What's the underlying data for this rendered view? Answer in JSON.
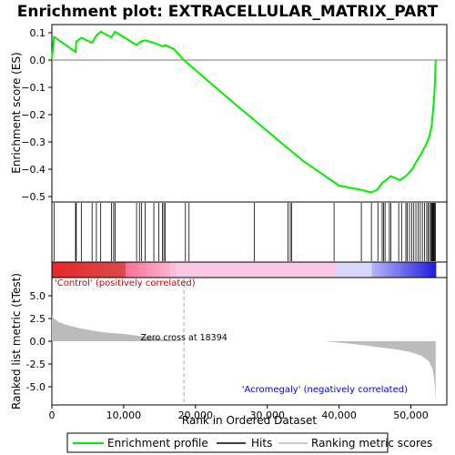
{
  "chart_data": {
    "type": "line",
    "title": "Enrichment plot: EXTRACELLULAR_MATRIX_PART",
    "top_panel": {
      "ylabel": "Enrichment score (ES)",
      "ylim": [
        -0.52,
        0.13
      ],
      "yticks": [
        0.1,
        0.0,
        -0.1,
        -0.2,
        -0.3,
        -0.4,
        -0.5
      ],
      "ytick_labels": [
        "0.1",
        "0.0",
        "−0.1",
        "−0.2",
        "−0.3",
        "−0.4",
        "−0.5"
      ],
      "series": [
        {
          "name": "Enrichment profile",
          "color": "#00ee00",
          "x": [
            0,
            300,
            3300,
            3400,
            4100,
            5600,
            6200,
            6800,
            8300,
            8800,
            11800,
            12400,
            13000,
            14200,
            15500,
            15800,
            17000,
            18394,
            25000,
            30000,
            35000,
            40000,
            43000,
            44500,
            45300,
            46000,
            46500,
            47200,
            48500,
            49500,
            50300,
            50800,
            51400,
            52000,
            52500,
            52900,
            53100,
            53250,
            53350,
            53450
          ],
          "y": [
            0.0,
            0.085,
            0.03,
            0.068,
            0.082,
            0.063,
            0.09,
            0.104,
            0.083,
            0.104,
            0.055,
            0.068,
            0.072,
            0.063,
            0.05,
            0.055,
            0.04,
            0.0,
            -0.15,
            -0.26,
            -0.37,
            -0.46,
            -0.475,
            -0.485,
            -0.475,
            -0.45,
            -0.44,
            -0.425,
            -0.44,
            -0.42,
            -0.395,
            -0.37,
            -0.345,
            -0.315,
            -0.285,
            -0.24,
            -0.18,
            -0.13,
            -0.075,
            0.0
          ]
        }
      ]
    },
    "hits_panel": {
      "name": "Hits",
      "positions": [
        300,
        3300,
        3400,
        4100,
        5600,
        6200,
        6800,
        8300,
        8600,
        8800,
        11800,
        12200,
        12500,
        13000,
        14200,
        14900,
        15400,
        15600,
        15800,
        18600,
        19100,
        28200,
        32900,
        33200,
        33400,
        39300,
        43100,
        44500,
        45400,
        46000,
        46200,
        46400,
        47000,
        47200,
        48300,
        48700,
        49300,
        49500,
        49800,
        50100,
        50400,
        50700,
        51000,
        51300,
        51600,
        51900,
        52200,
        52400,
        52600,
        52800,
        52900,
        53000,
        53100,
        53200,
        53300,
        53400
      ]
    },
    "metric_panel": {
      "name": "Ranking metric scores",
      "ylabel": "Ranked list metric (tTest)",
      "xlabel": "Rank in Ordered Dataset",
      "ylim": [
        -7,
        7
      ],
      "yticks": [
        5.0,
        2.5,
        0.0,
        -2.5,
        -5.0
      ],
      "ytick_labels": [
        "5.0",
        "2.5",
        "0.0",
        "-2.5",
        "-5.0"
      ],
      "x": [
        0,
        300,
        1000,
        2000,
        4000,
        7000,
        10000,
        13000,
        16000,
        18394,
        22000,
        30000,
        38000,
        39300,
        42000,
        45000,
        48000,
        50000,
        51500,
        52500,
        53000,
        53300,
        53450
      ],
      "y": [
        2.8,
        2.5,
        2.1,
        1.8,
        1.4,
        1.0,
        0.8,
        0.5,
        0.2,
        0.0,
        0.0,
        0.0,
        0.0,
        -0.1,
        -0.3,
        -0.6,
        -0.9,
        -1.2,
        -1.6,
        -2.2,
        -3.0,
        -4.5,
        -6.5
      ],
      "zero_cross_label": "Zero cross at 18394",
      "zero_cross": 18394,
      "positive_label": "'Control' (positively correlated)",
      "negative_label": "'Acromegaly' (negatively correlated)"
    },
    "xlim": [
      0,
      55000
    ],
    "xticks": [
      0,
      10000,
      20000,
      30000,
      40000,
      50000
    ],
    "xtick_labels": [
      "0",
      "10,000",
      "20,000",
      "30,000",
      "40,000",
      "50,000"
    ],
    "legend": {
      "placement": "bottom",
      "entries": [
        {
          "label": "Enrichment profile",
          "color": "#00ee00"
        },
        {
          "label": "Hits",
          "color": "#000000"
        },
        {
          "label": "Ranking metric scores",
          "color": "#bbbbbb"
        }
      ]
    },
    "grid": false
  }
}
